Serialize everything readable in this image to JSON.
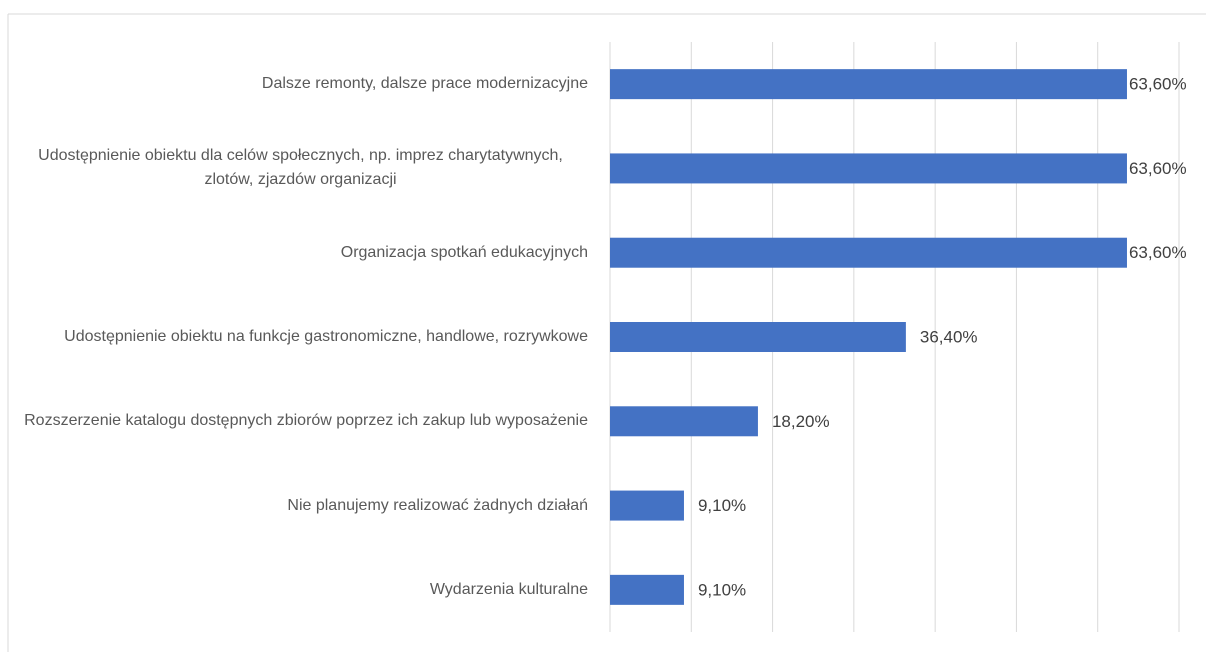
{
  "chart_data": {
    "type": "bar",
    "orientation": "horizontal",
    "categories": [
      "Dalsze remonty, dalsze prace modernizacyjne",
      "Udostępnienie obiektu dla celów społecznych, np. imprez charytatywnych, zlotów, zjazdów organizacji",
      "Organizacja spotkań edukacyjnych",
      "Udostępnienie obiektu na funkcje gastronomiczne, handlowe, rozrywkowe",
      "Rozszerzenie katalogu dostępnych zbiorów poprzez ich zakup lub wyposażenie",
      "Nie planujemy realizować żadnych działań",
      "Wydarzenia kulturalne"
    ],
    "values": [
      63.6,
      63.6,
      63.6,
      36.4,
      18.2,
      9.1,
      9.1
    ],
    "value_labels": [
      "63,60%",
      "63,60%",
      "63,60%",
      "36,40%",
      "18,20%",
      "9,10%",
      "9,10%"
    ],
    "color": "#4472c4",
    "xlim": [
      0,
      70
    ],
    "xticks": [
      0,
      10,
      20,
      30,
      40,
      50,
      60,
      70
    ],
    "grid": true
  }
}
